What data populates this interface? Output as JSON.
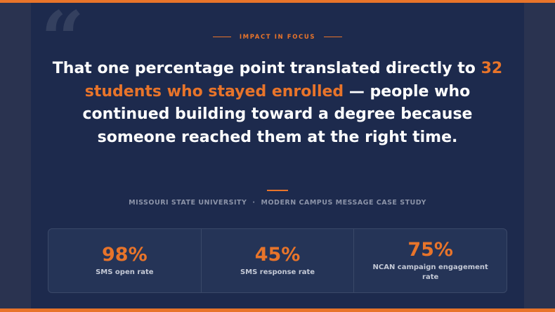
{
  "eyebrow": "IMPACT IN FOCUS",
  "quote_mark": "“",
  "headline": {
    "lead": "That one percentage point translated directly to ",
    "highlight": "32 students who stayed enrolled",
    "tail": " — people who continued building toward a degree because someone reached them at the right time."
  },
  "source": {
    "institution": "MISSOURI STATE UNIVERSITY",
    "separator": "·",
    "study": "MODERN CAMPUS MESSAGE CASE STUDY"
  },
  "stats": [
    {
      "value": "98%",
      "label": "SMS open rate"
    },
    {
      "value": "45%",
      "label": "SMS response rate"
    },
    {
      "value": "75%",
      "label": "NCAN campaign engagement rate"
    }
  ],
  "colors": {
    "accent": "#e8742a",
    "panel_bg": "#1d2a4d",
    "page_bg": "#2a3350",
    "text": "#ffffff",
    "muted": "#8b93a8"
  }
}
